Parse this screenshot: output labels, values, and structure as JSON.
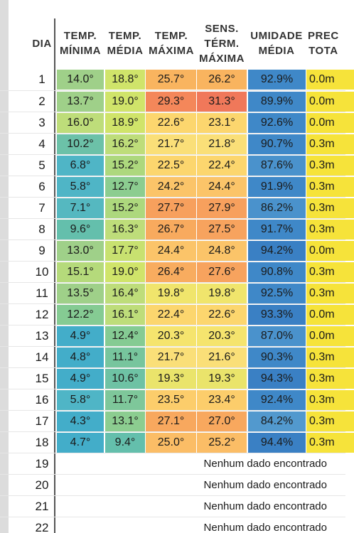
{
  "headers": {
    "day": "DIA",
    "min": "TEMP.\nMÍNIMA",
    "avg": "TEMP.\nMÉDIA",
    "max": "TEMP.\nMÁXIMA",
    "sens": "SENS.\nTÉRM.\nMÁXIMA",
    "hum": "UMIDADE\nMÉDIA",
    "prec": "PREC\nTOTA"
  },
  "rows": [
    {
      "day": "1",
      "min": "14.0°",
      "avg": "18.8°",
      "max": "25.7°",
      "sens": "26.2°",
      "hum": "92.9%",
      "prec": "0.0m",
      "colors": [
        "#9fd089",
        "#d0e46a",
        "#f9b45f",
        "#f9b45f",
        "#3f88c8",
        "#f6e33a"
      ]
    },
    {
      "day": "2",
      "min": "13.7°",
      "avg": "19.0°",
      "max": "29.3°",
      "sens": "31.3°",
      "hum": "89.9%",
      "prec": "0.0m",
      "colors": [
        "#9fd089",
        "#d0e46a",
        "#f4875a",
        "#f0785a",
        "#3f88c8",
        "#f6e33a"
      ]
    },
    {
      "day": "3",
      "min": "16.0°",
      "avg": "18.9°",
      "max": "22.6°",
      "sens": "23.1°",
      "hum": "92.6%",
      "prec": "0.0m",
      "colors": [
        "#bedd7a",
        "#d0e46a",
        "#fcd66e",
        "#fcd66e",
        "#3f88c8",
        "#f6e33a"
      ]
    },
    {
      "day": "4",
      "min": "10.2°",
      "avg": "16.2°",
      "max": "21.7°",
      "sens": "21.8°",
      "hum": "90.7%",
      "prec": "0.3m",
      "colors": [
        "#6cc1a8",
        "#bedd7a",
        "#fadf78",
        "#fadf78",
        "#3f88c8",
        "#f6e33a"
      ]
    },
    {
      "day": "5",
      "min": "6.8°",
      "avg": "15.2°",
      "max": "22.5°",
      "sens": "22.4°",
      "hum": "87.6%",
      "prec": "0.3m",
      "colors": [
        "#4fb5c6",
        "#add87d",
        "#fcd66e",
        "#fcd66e",
        "#4a92cc",
        "#f6e33a"
      ]
    },
    {
      "day": "6",
      "min": "5.8°",
      "avg": "12.7°",
      "max": "24.2°",
      "sens": "24.4°",
      "hum": "91.9%",
      "prec": "0.3m",
      "colors": [
        "#4fb5c6",
        "#8ccd90",
        "#fbc469",
        "#fbc469",
        "#3f88c8",
        "#f6e33a"
      ]
    },
    {
      "day": "7",
      "min": "7.1°",
      "avg": "15.2°",
      "max": "27.7°",
      "sens": "27.9°",
      "hum": "86.2%",
      "prec": "0.3m",
      "colors": [
        "#55b8c0",
        "#add87d",
        "#f7a05d",
        "#f7a05d",
        "#4a92cc",
        "#f6e33a"
      ]
    },
    {
      "day": "8",
      "min": "9.6°",
      "avg": "16.3°",
      "max": "26.7°",
      "sens": "27.5°",
      "hum": "91.7%",
      "prec": "0.3m",
      "colors": [
        "#64bfac",
        "#bedd7a",
        "#f8aa5e",
        "#f7a35e",
        "#3f88c8",
        "#f6e33a"
      ]
    },
    {
      "day": "9",
      "min": "13.0°",
      "avg": "17.7°",
      "max": "24.4°",
      "sens": "24.8°",
      "hum": "94.2%",
      "prec": "0.0m",
      "colors": [
        "#9fd089",
        "#c8e170",
        "#fbc469",
        "#fbc469",
        "#3a80c4",
        "#f6e33a"
      ]
    },
    {
      "day": "10",
      "min": "15.1°",
      "avg": "19.0°",
      "max": "26.4°",
      "sens": "27.6°",
      "hum": "90.8%",
      "prec": "0.3m",
      "colors": [
        "#b5da7b",
        "#d0e46a",
        "#f8ac5f",
        "#f7a35e",
        "#3f88c8",
        "#f6e33a"
      ]
    },
    {
      "day": "11",
      "min": "13.5°",
      "avg": "16.4°",
      "max": "19.8°",
      "sens": "19.8°",
      "hum": "92.5%",
      "prec": "0.3m",
      "colors": [
        "#9fd089",
        "#bedd7a",
        "#f0e56c",
        "#f0e56c",
        "#3f88c8",
        "#f6e33a"
      ]
    },
    {
      "day": "12",
      "min": "12.2°",
      "avg": "16.1°",
      "max": "22.4°",
      "sens": "22.6°",
      "hum": "93.3%",
      "prec": "0.0m",
      "colors": [
        "#85cb93",
        "#bedd7a",
        "#fcd66e",
        "#fcd66e",
        "#3a80c4",
        "#f6e33a"
      ]
    },
    {
      "day": "13",
      "min": "4.9°",
      "avg": "12.4°",
      "max": "20.3°",
      "sens": "20.3°",
      "hum": "87.0%",
      "prec": "0.0m",
      "colors": [
        "#43adc9",
        "#85cb93",
        "#f5e46e",
        "#f5e46e",
        "#4a92cc",
        "#f6e33a"
      ]
    },
    {
      "day": "14",
      "min": "4.8°",
      "avg": "11.1°",
      "max": "21.7°",
      "sens": "21.6°",
      "hum": "90.3%",
      "prec": "0.3m",
      "colors": [
        "#43adc9",
        "#77c59d",
        "#fadf78",
        "#fadf78",
        "#3f88c8",
        "#f6e33a"
      ]
    },
    {
      "day": "15",
      "min": "4.9°",
      "avg": "10.6°",
      "max": "19.3°",
      "sens": "19.3°",
      "hum": "94.3%",
      "prec": "0.3m",
      "colors": [
        "#43adc9",
        "#6ec2a4",
        "#eae46b",
        "#eae46b",
        "#3a80c4",
        "#f6e33a"
      ]
    },
    {
      "day": "16",
      "min": "5.8°",
      "avg": "11.7°",
      "max": "23.5°",
      "sens": "23.4°",
      "hum": "92.4%",
      "prec": "0.3m",
      "colors": [
        "#4fb5c6",
        "#7ec79a",
        "#fccd6b",
        "#fccd6b",
        "#3f88c8",
        "#f6e33a"
      ]
    },
    {
      "day": "17",
      "min": "4.3°",
      "avg": "13.1°",
      "max": "27.1°",
      "sens": "27.0°",
      "hum": "84.2%",
      "prec": "0.3m",
      "colors": [
        "#43adc9",
        "#8ccd90",
        "#f8a85e",
        "#f8a85e",
        "#5299ce",
        "#f6e33a"
      ]
    },
    {
      "day": "18",
      "min": "4.7°",
      "avg": "9.4°",
      "max": "25.0°",
      "sens": "25.2°",
      "hum": "94.4%",
      "prec": "0.3m",
      "colors": [
        "#43adc9",
        "#64bfac",
        "#fbbd66",
        "#fbbd66",
        "#3a80c4",
        "#f6e33a"
      ]
    }
  ],
  "empty_rows": [
    {
      "day": "19",
      "text": "Nenhum dado encontrado"
    },
    {
      "day": "20",
      "text": "Nenhum dado encontrado"
    },
    {
      "day": "21",
      "text": "Nenhum dado encontrado"
    },
    {
      "day": "22",
      "text": "Nenhum dado encontrado"
    }
  ]
}
